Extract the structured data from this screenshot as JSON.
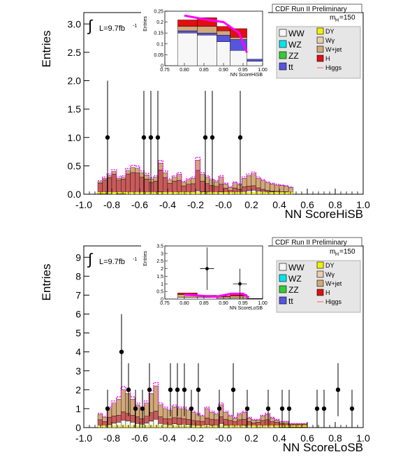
{
  "colors": {
    "WW": "#f7f7f7",
    "WZ": "#00e5ee",
    "ZZ": "#33cc33",
    "ttbar": "#5555dd",
    "DY": "#f2f200",
    "Wgamma": "#e8cdb0",
    "Wjet": "#d2a87a",
    "H": "#e01010",
    "Higgs": "#ff7070",
    "signal_body": "#c85a5a",
    "band": "#ff00ff",
    "data": "#000000"
  },
  "panels": [
    {
      "header": "CDF Run II Preliminary",
      "ylabel": "Entries",
      "xlabel": "NN ScoreHiSB",
      "lumi_prefix": "∫",
      "lumi": "L=9.7fb",
      "lumi_sup": "-1",
      "mass_label": "m",
      "mass_sub": "H",
      "mass_value": "=150",
      "legend_left": [
        "WW",
        "WZ",
        "ZZ",
        "tt"
      ],
      "legend_right": [
        "DY",
        "Wγ",
        "W+jet",
        "H",
        "Higgs"
      ],
      "inset_ylabel": "Entries",
      "inset_xlabel": "NN ScoreHiSB"
    },
    {
      "header": "CDF Run II Preliminary",
      "ylabel": "Entries",
      "xlabel": "NN ScoreLoSB",
      "lumi_prefix": "∫",
      "lumi": "L=9.7fb",
      "lumi_sup": "-1",
      "mass_label": "m",
      "mass_sub": "H",
      "mass_value": "=150",
      "legend_left": [
        "WW",
        "WZ",
        "ZZ",
        "tt"
      ],
      "legend_right": [
        "DY",
        "Wγ",
        "W+jet",
        "H",
        "Higgs"
      ],
      "inset_ylabel": "Entries",
      "inset_xlabel": "NN ScoreLoSB"
    }
  ],
  "chart_data": [
    {
      "type": "bar",
      "title": "CDF Run II Preliminary",
      "xlabel": "NN ScoreHiSB",
      "ylabel": "Entries",
      "xlim": [
        -1.0,
        1.0
      ],
      "ylim": [
        0,
        3.2
      ],
      "xticks": [
        "-1.0",
        "-0.8",
        "-0.6",
        "-0.4",
        "-0.2",
        "-0.0",
        "0.2",
        "0.4",
        "0.6",
        "0.8",
        "1.0"
      ],
      "yticks": [
        "0.0",
        "0.5",
        "1.0",
        "1.5",
        "2.0",
        "2.5",
        "3.0"
      ],
      "bin_edges_start": -0.9,
      "bin_width": 0.0333,
      "stack_total": [
        0.22,
        0.28,
        0.33,
        0.4,
        0.28,
        0.3,
        0.42,
        0.47,
        0.46,
        0.38,
        0.34,
        0.27,
        0.3,
        0.55,
        0.38,
        0.25,
        0.3,
        0.35,
        0.21,
        0.25,
        0.28,
        0.6,
        0.35,
        0.3,
        0.25,
        0.22,
        0.3,
        0.18,
        0.12,
        0.2,
        0.17,
        0.28,
        0.33,
        0.36,
        0.28,
        0.24,
        0.2,
        0.18,
        0.16,
        0.15,
        0.14,
        0.12
      ],
      "signal_fraction": [
        0.85,
        0.85,
        0.85,
        0.85,
        0.85,
        0.85,
        0.8,
        0.75,
        0.75,
        0.72,
        0.72,
        0.7,
        0.7,
        0.7,
        0.7,
        0.7,
        0.7,
        0.6,
        0.6,
        0.6,
        0.55,
        0.6,
        0.55,
        0.5,
        0.5,
        0.5,
        0.45,
        0.45,
        0.4,
        0.4,
        0.35,
        0.3,
        0.25,
        0.22,
        0.2,
        0.15,
        0.12,
        0.1,
        0.1,
        0.08,
        0.08,
        0.05
      ],
      "data_points": [
        {
          "x": -0.83,
          "y": 1,
          "err": 1
        },
        {
          "x": -0.57,
          "y": 1,
          "err": 1
        },
        {
          "x": -0.52,
          "y": 1,
          "err": 1
        },
        {
          "x": -0.47,
          "y": 1,
          "err": 1
        },
        {
          "x": -0.13,
          "y": 1,
          "err": 1
        },
        {
          "x": -0.08,
          "y": 1,
          "err": 1
        },
        {
          "x": 0.12,
          "y": 1,
          "err": 1
        }
      ],
      "inset": {
        "xlim": [
          0.75,
          1.0
        ],
        "ylim": [
          0,
          0.25
        ],
        "xticks": [
          "0.75",
          "0.80",
          "0.85",
          "0.90",
          "0.95",
          "1.00"
        ],
        "yticks": [
          "0",
          "0.05",
          "0.1",
          "0.15",
          "0.2",
          "0.25"
        ],
        "bins": [
          {
            "x0": 0.783,
            "x1": 0.833,
            "white": 0.15,
            "blue": 0.01,
            "tan": 0.02,
            "red": 0.03
          },
          {
            "x0": 0.833,
            "x1": 0.883,
            "white": 0.14,
            "blue": 0.01,
            "tan": 0.03,
            "red": 0.04
          },
          {
            "x0": 0.883,
            "x1": 0.917,
            "white": 0.11,
            "blue": 0.03,
            "tan": 0.02,
            "red": 0.02
          },
          {
            "x0": 0.917,
            "x1": 0.96,
            "white": 0.07,
            "blue": 0.05,
            "tan": 0.01,
            "red": 0.04
          },
          {
            "x0": 0.96,
            "x1": 1.0,
            "white": 0.02,
            "blue": 0.01,
            "tan": 0.0,
            "red": 0.0
          }
        ],
        "band": [
          [
            0.8,
            0.23
          ],
          [
            0.83,
            0.22
          ],
          [
            0.86,
            0.21
          ],
          [
            0.9,
            0.2
          ],
          [
            0.94,
            0.15
          ],
          [
            0.955,
            0.08
          ],
          [
            0.96,
            0.06
          ]
        ],
        "data_points": []
      }
    },
    {
      "type": "bar",
      "title": "CDF Run II Preliminary",
      "xlabel": "NN ScoreLoSB",
      "ylabel": "Entries",
      "xlim": [
        -1.0,
        1.0
      ],
      "ylim": [
        0,
        9.6
      ],
      "xticks": [
        "-1.0",
        "-0.8",
        "-0.6",
        "-0.4",
        "-0.2",
        "-0.0",
        "0.2",
        "0.4",
        "0.6",
        "0.8",
        "1.0"
      ],
      "yticks": [
        "0",
        "1",
        "2",
        "3",
        "4",
        "5",
        "6",
        "7",
        "8",
        "9"
      ],
      "bin_edges_start": -0.9,
      "bin_width": 0.0333,
      "stack_total": [
        0.7,
        0.55,
        1.0,
        1.3,
        1.5,
        2.0,
        1.8,
        1.5,
        1.2,
        1.0,
        1.3,
        1.8,
        2.2,
        1.2,
        1.0,
        0.9,
        1.1,
        1.0,
        1.0,
        0.9,
        0.8,
        0.7,
        0.6,
        1.0,
        0.8,
        0.7,
        1.2,
        0.8,
        0.6,
        0.5,
        0.7,
        0.8,
        0.5,
        0.4,
        0.4,
        0.6,
        0.7,
        0.5,
        0.4,
        0.3,
        0.3,
        0.2,
        0.2,
        0.2,
        0.2
      ],
      "signal_fraction": [
        0.45,
        0.45,
        0.4,
        0.3,
        0.25,
        0.22,
        0.22,
        0.25,
        0.3,
        0.3,
        0.28,
        0.25,
        0.2,
        0.3,
        0.3,
        0.35,
        0.3,
        0.35,
        0.3,
        0.3,
        0.3,
        0.35,
        0.4,
        0.35,
        0.4,
        0.45,
        0.3,
        0.4,
        0.5,
        0.5,
        0.45,
        0.4,
        0.5,
        0.5,
        0.6,
        0.5,
        0.45,
        0.5,
        0.6,
        0.6,
        0.6,
        0.7,
        0.7,
        0.7,
        0.7
      ],
      "data_points": [
        {
          "x": -0.83,
          "y": 1,
          "err": 1
        },
        {
          "x": -0.73,
          "y": 4,
          "err": 2
        },
        {
          "x": -0.68,
          "y": 2,
          "err": 1.4
        },
        {
          "x": -0.63,
          "y": 1,
          "err": 1
        },
        {
          "x": -0.58,
          "y": 1,
          "err": 1
        },
        {
          "x": -0.53,
          "y": 2,
          "err": 1.4
        },
        {
          "x": -0.38,
          "y": 2,
          "err": 1.4
        },
        {
          "x": -0.33,
          "y": 2,
          "err": 1.4
        },
        {
          "x": -0.28,
          "y": 2,
          "err": 1.4
        },
        {
          "x": -0.23,
          "y": 1,
          "err": 1
        },
        {
          "x": -0.18,
          "y": 2,
          "err": 1.4
        },
        {
          "x": -0.03,
          "y": 1,
          "err": 1
        },
        {
          "x": 0.07,
          "y": 2,
          "err": 1.4
        },
        {
          "x": 0.17,
          "y": 1,
          "err": 1
        },
        {
          "x": 0.32,
          "y": 1,
          "err": 1
        },
        {
          "x": 0.42,
          "y": 1,
          "err": 1
        },
        {
          "x": 0.47,
          "y": 1,
          "err": 1
        },
        {
          "x": 0.67,
          "y": 1,
          "err": 1
        },
        {
          "x": 0.72,
          "y": 1,
          "err": 1
        },
        {
          "x": 0.82,
          "y": 2,
          "err": 1.4
        },
        {
          "x": 0.92,
          "y": 1,
          "err": 1
        }
      ],
      "inset": {
        "xlim": [
          0.75,
          1.0
        ],
        "ylim": [
          0,
          3.5
        ],
        "xticks": [
          "0.75",
          "0.80",
          "0.85",
          "0.90",
          "0.95",
          "1.00"
        ],
        "yticks": [
          "0",
          "0.5",
          "1",
          "1.5",
          "2",
          "2.5",
          "3",
          "3.5"
        ],
        "bins": [
          {
            "x0": 0.783,
            "x1": 0.833,
            "white": 0.1,
            "blue": 0.0,
            "tan": 0.2,
            "red": 0.1
          },
          {
            "x0": 0.833,
            "x1": 0.883,
            "white": 0.1,
            "blue": 0.0,
            "tan": 0.1,
            "red": 0.05
          },
          {
            "x0": 0.883,
            "x1": 0.917,
            "white": 0.05,
            "blue": 0.0,
            "tan": 0.1,
            "red": 0.05
          },
          {
            "x0": 0.917,
            "x1": 0.96,
            "white": 0.05,
            "blue": 0.0,
            "tan": 0.15,
            "red": 0.1
          },
          {
            "x0": 0.96,
            "x1": 1.0,
            "white": 0.02,
            "blue": 0.0,
            "tan": 0.02,
            "red": 0.0
          }
        ],
        "band": [
          [
            0.8,
            0.3
          ],
          [
            0.85,
            0.2
          ],
          [
            0.88,
            0.15
          ],
          [
            0.92,
            0.35
          ],
          [
            0.95,
            0.35
          ],
          [
            0.965,
            0.1
          ]
        ],
        "data_points": [
          {
            "x": 0.858,
            "y": 2,
            "err": 1.4
          },
          {
            "x": 0.942,
            "y": 1,
            "err": 1
          }
        ]
      }
    }
  ]
}
